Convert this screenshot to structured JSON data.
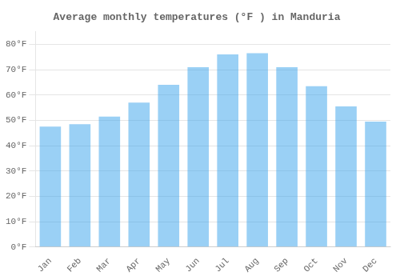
{
  "chart_data": {
    "type": "bar",
    "title": "Average monthly temperatures (°F ) in Manduria",
    "categories": [
      "Jan",
      "Feb",
      "Mar",
      "Apr",
      "May",
      "Jun",
      "Jul",
      "Aug",
      "Sep",
      "Oct",
      "Nov",
      "Dec"
    ],
    "values": [
      47.5,
      48.5,
      51.5,
      57.0,
      64.0,
      71.0,
      76.0,
      76.5,
      71.0,
      63.5,
      55.5,
      49.5
    ],
    "ylim": [
      0,
      85
    ],
    "yticks": [
      {
        "value": 0,
        "label": "0°F"
      },
      {
        "value": 10,
        "label": "10°F"
      },
      {
        "value": 20,
        "label": "20°F"
      },
      {
        "value": 30,
        "label": "30°F"
      },
      {
        "value": 40,
        "label": "40°F"
      },
      {
        "value": 50,
        "label": "50°F"
      },
      {
        "value": 60,
        "label": "60°F"
      },
      {
        "value": 70,
        "label": "70°F"
      },
      {
        "value": 80,
        "label": "80°F"
      }
    ],
    "grid": "y"
  }
}
